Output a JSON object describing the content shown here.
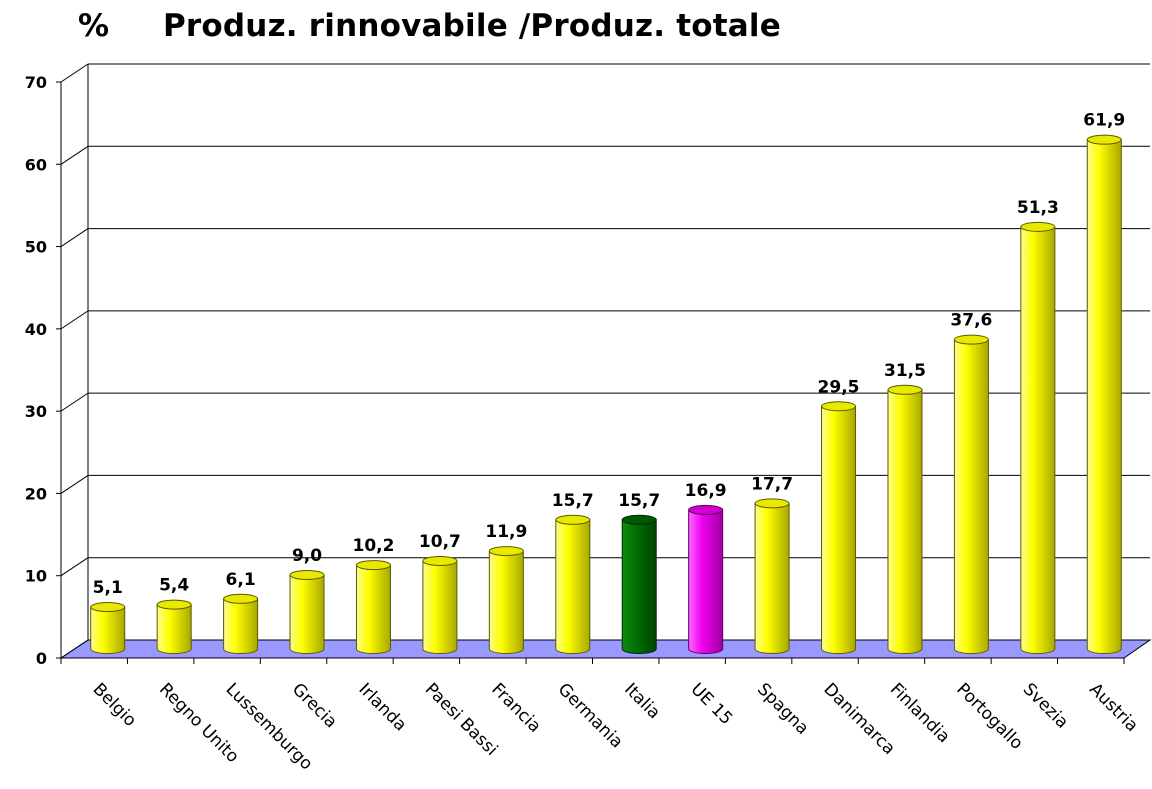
{
  "chart_data": {
    "type": "bar",
    "title_unit": "%",
    "title": "Produz. rinnovabile /Produz. totale",
    "xlabel": "",
    "ylabel": "",
    "ylim": [
      0,
      70
    ],
    "yticks": [
      0,
      10,
      20,
      30,
      40,
      50,
      60,
      70
    ],
    "grid": true,
    "legend": "none",
    "categories": [
      "Belgio",
      "Regno Unito",
      "Lussemburgo",
      "Grecia",
      "Irlanda",
      "Paesi Bassi",
      "Francia",
      "Germania",
      "Italia",
      "UE 15",
      "Spagna",
      "Danimarca",
      "Finlandia",
      "Portogallo",
      "Svezia",
      "Austria"
    ],
    "values": [
      5.1,
      5.4,
      6.1,
      9.0,
      10.2,
      10.7,
      11.9,
      15.7,
      15.7,
      16.9,
      17.7,
      29.5,
      31.5,
      37.6,
      51.3,
      61.9
    ],
    "value_labels": [
      "5,1",
      "5,4",
      "6,1",
      "9,0",
      "10,2",
      "10,7",
      "11,9",
      "15,7",
      "15,7",
      "16,9",
      "17,7",
      "29,5",
      "31,5",
      "37,6",
      "51,3",
      "61,9"
    ],
    "colors": {
      "default": "#f2f200",
      "Italia": "#007000",
      "UE 15": "#e600e6",
      "floor": "#9999ff"
    }
  }
}
